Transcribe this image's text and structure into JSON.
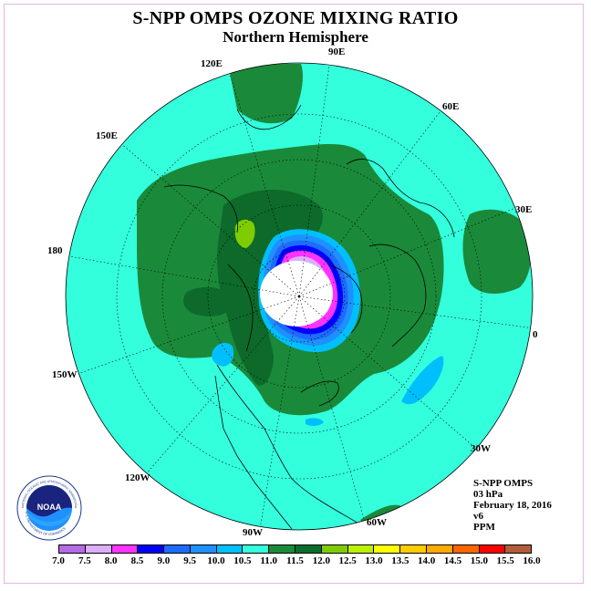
{
  "header": {
    "title": "S-NPP OMPS OZONE MIXING RATIO",
    "subtitle": "Northern Hemisphere"
  },
  "map": {
    "projection": "north-polar-stereographic",
    "longitude_labels": [
      "90E",
      "60E",
      "30E",
      "0",
      "30W",
      "60W",
      "90W",
      "120W",
      "150W",
      "180",
      "150E",
      "120E"
    ],
    "colors": {
      "background": "#33ffdd",
      "mid_band": "#1a8a3a",
      "dark_band": "#0d6a2a",
      "polar_night": "#ffffff",
      "coast": "#000000"
    }
  },
  "info": {
    "lines": [
      "S-NPP OMPS",
      "03 hPa",
      "February 18, 2016",
      "v6",
      "PPM"
    ]
  },
  "legend": {
    "labels": [
      "7.0",
      "7.5",
      "8.0",
      "8.5",
      "9.0",
      "9.5",
      "10.0",
      "10.5",
      "11.0",
      "11.5",
      "12.0",
      "12.5",
      "13.0",
      "13.5",
      "14.0",
      "14.5",
      "15.0",
      "15.5",
      "16.0"
    ],
    "colors": [
      "#b56ae6",
      "#dbaeff",
      "#ff33ff",
      "#0000ff",
      "#1e6bff",
      "#1e90ff",
      "#00bfff",
      "#33ffdd",
      "#1a8a3a",
      "#0b6e2a",
      "#7fcc00",
      "#bbf000",
      "#ffff00",
      "#ffcc00",
      "#ffaa00",
      "#ff6600",
      "#ff0000",
      "#b35c3a"
    ]
  },
  "logo": {
    "text": "NOAA",
    "ring_text": "NATIONAL OCEANIC AND ATMOSPHERIC ADMINISTRATION",
    "bottom_text": "U.S. DEPARTMENT OF COMMERCE"
  }
}
